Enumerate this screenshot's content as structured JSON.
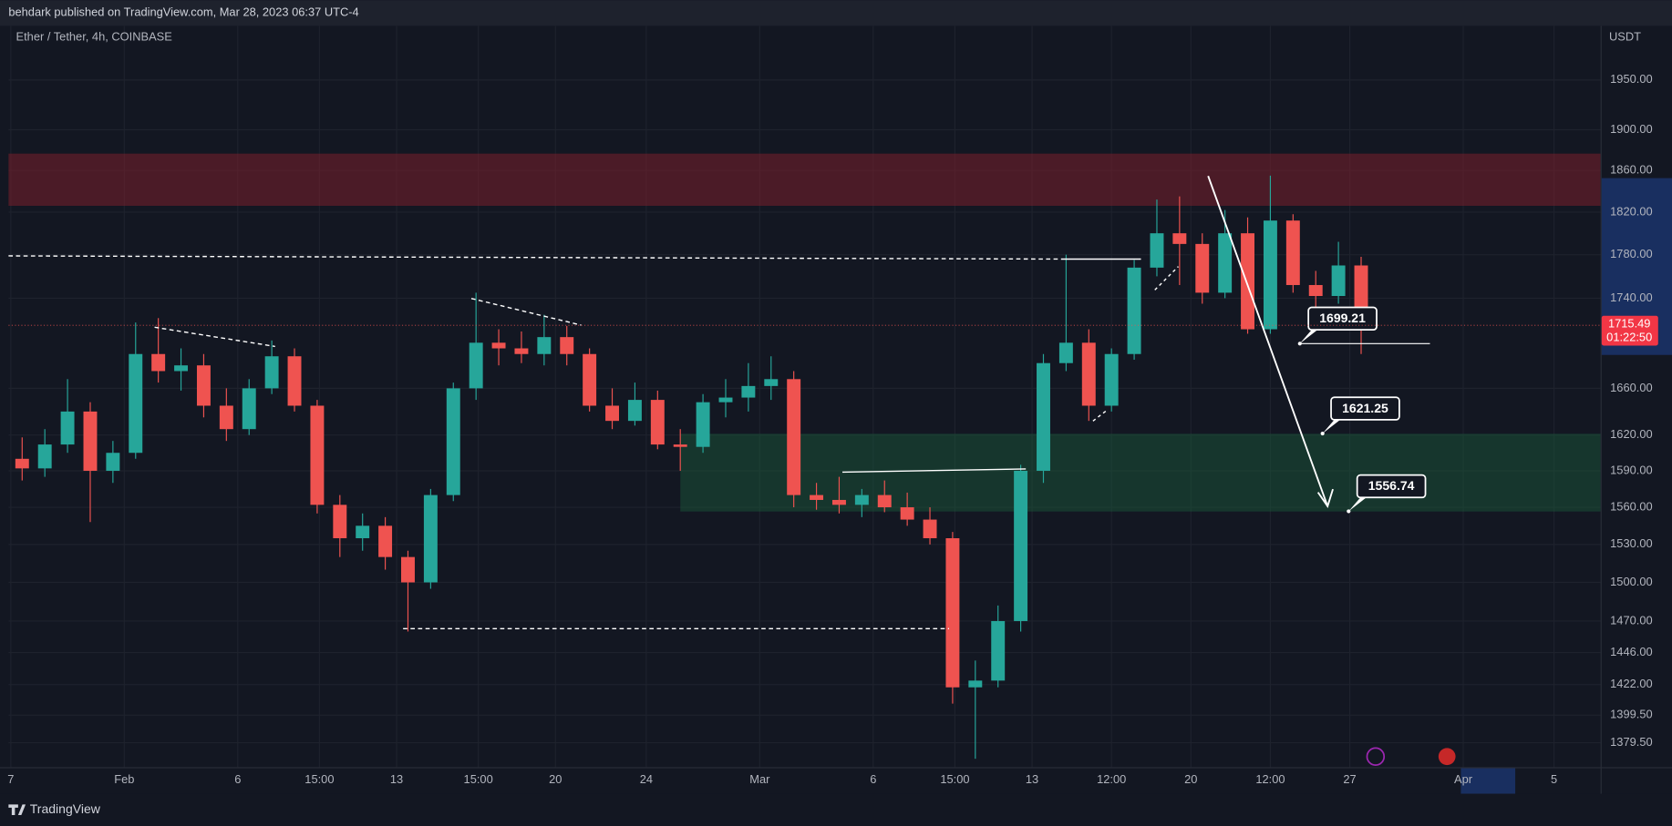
{
  "header": {
    "title": "behdark published on TradingView.com, Mar 28, 2023 06:37 UTC-4"
  },
  "footer": {
    "brand": "TradingView"
  },
  "chart_data": {
    "type": "candlestick",
    "title": "Ether / Tether, 4h, COINBASE",
    "y_unit": "USDT",
    "log_scale": true,
    "grid": true,
    "up_color": "#26a69a",
    "down_color": "#ef5350",
    "x": [
      0.5,
      1.5,
      2.5,
      3.5,
      4.5,
      5.5,
      6.5,
      7.5,
      8.5,
      9.5,
      10.5,
      11.5,
      12.5,
      13.5,
      14.5,
      15.5,
      16.5,
      17.5,
      18.5,
      19.5,
      20.5,
      21.5,
      22.5,
      23.5,
      24.5,
      25.5,
      26.5,
      27.5,
      28.5,
      29.5,
      30.5,
      31.5,
      32.5,
      33.5,
      34.5,
      35.5,
      36.5,
      37.5,
      38.5,
      39.5,
      40.5,
      41.5,
      42.5,
      43.5,
      44.5,
      45.5,
      46.5,
      47.5,
      48.5,
      49.5,
      50.5,
      51.5,
      52.5,
      53.5,
      54.5,
      55.5,
      56.5,
      57.5,
      58.5,
      59.5
    ],
    "open": [
      1600,
      1592,
      1612,
      1640,
      1590,
      1605,
      1690,
      1675,
      1680,
      1645,
      1625,
      1660,
      1688,
      1645,
      1562,
      1535,
      1545,
      1520,
      1500,
      1570,
      1660,
      1700,
      1695,
      1690,
      1705,
      1690,
      1645,
      1632,
      1650,
      1612,
      1610,
      1648,
      1652,
      1662,
      1668,
      1570,
      1566,
      1562,
      1570,
      1560,
      1550,
      1535,
      1420,
      1425,
      1470,
      1590,
      1682,
      1700,
      1645,
      1690,
      1768,
      1800,
      1790,
      1745,
      1800,
      1712,
      1812,
      1752,
      1742,
      1770
    ],
    "high": [
      1618,
      1625,
      1668,
      1648,
      1615,
      1718,
      1722,
      1695,
      1690,
      1660,
      1668,
      1702,
      1695,
      1650,
      1570,
      1555,
      1552,
      1525,
      1575,
      1665,
      1745,
      1712,
      1710,
      1725,
      1715,
      1695,
      1660,
      1665,
      1658,
      1625,
      1655,
      1668,
      1682,
      1688,
      1675,
      1580,
      1585,
      1575,
      1582,
      1572,
      1560,
      1540,
      1440,
      1482,
      1595,
      1690,
      1780,
      1712,
      1695,
      1775,
      1832,
      1835,
      1800,
      1822,
      1815,
      1855,
      1818,
      1765,
      1792,
      1778
    ],
    "low": [
      1582,
      1585,
      1605,
      1548,
      1580,
      1600,
      1665,
      1658,
      1635,
      1615,
      1620,
      1655,
      1640,
      1555,
      1520,
      1525,
      1510,
      1462,
      1495,
      1565,
      1650,
      1680,
      1682,
      1680,
      1680,
      1640,
      1625,
      1628,
      1608,
      1590,
      1605,
      1635,
      1640,
      1650,
      1560,
      1558,
      1555,
      1552,
      1556,
      1545,
      1530,
      1408,
      1368,
      1420,
      1462,
      1580,
      1675,
      1632,
      1640,
      1685,
      1760,
      1752,
      1735,
      1740,
      1708,
      1708,
      1745,
      1728,
      1735,
      1690
    ],
    "close": [
      1592,
      1612,
      1640,
      1590,
      1605,
      1690,
      1675,
      1680,
      1645,
      1625,
      1660,
      1688,
      1645,
      1562,
      1535,
      1545,
      1520,
      1500,
      1570,
      1660,
      1700,
      1695,
      1690,
      1705,
      1690,
      1645,
      1632,
      1650,
      1612,
      1610,
      1648,
      1652,
      1662,
      1668,
      1570,
      1566,
      1562,
      1570,
      1560,
      1550,
      1535,
      1420,
      1425,
      1470,
      1590,
      1682,
      1700,
      1645,
      1690,
      1768,
      1800,
      1790,
      1745,
      1800,
      1712,
      1812,
      1752,
      1742,
      1770,
      1715.49
    ],
    "xlim": [
      -0.1,
      70.05
    ],
    "ylim": [
      1362,
      2006
    ],
    "xticks": [
      {
        "value": 0,
        "label": "7"
      },
      {
        "value": 5,
        "label": "Feb"
      },
      {
        "value": 10,
        "label": "6"
      },
      {
        "value": 13.6,
        "label": "15:00"
      },
      {
        "value": 17,
        "label": "13"
      },
      {
        "value": 20.6,
        "label": "15:00"
      },
      {
        "value": 24,
        "label": "20"
      },
      {
        "value": 28,
        "label": "24"
      },
      {
        "value": 33,
        "label": "Mar"
      },
      {
        "value": 38,
        "label": "6"
      },
      {
        "value": 41.6,
        "label": "15:00"
      },
      {
        "value": 45,
        "label": "13"
      },
      {
        "value": 48.5,
        "label": "12:00"
      },
      {
        "value": 52,
        "label": "20"
      },
      {
        "value": 55.5,
        "label": "12:00"
      },
      {
        "value": 59,
        "label": "27"
      },
      {
        "value": 64,
        "label": "Apr"
      },
      {
        "value": 68,
        "label": "5"
      }
    ],
    "yticks": [
      {
        "value": 1950,
        "label": "1950.00"
      },
      {
        "value": 1900,
        "label": "1900.00"
      },
      {
        "value": 1860,
        "label": "1860.00"
      },
      {
        "value": 1820,
        "label": "1820.00"
      },
      {
        "value": 1780,
        "label": "1780.00"
      },
      {
        "value": 1740,
        "label": "1740.00"
      },
      {
        "value": 1660,
        "label": "1660.00"
      },
      {
        "value": 1620,
        "label": "1620.00"
      },
      {
        "value": 1590,
        "label": "1590.00"
      },
      {
        "value": 1560,
        "label": "1560.00"
      },
      {
        "value": 1530,
        "label": "1530.00"
      },
      {
        "value": 1500,
        "label": "1500.00"
      },
      {
        "value": 1470,
        "label": "1470.00"
      },
      {
        "value": 1446,
        "label": "1446.00"
      },
      {
        "value": 1422,
        "label": "1422.00"
      },
      {
        "value": 1399.5,
        "label": "1399.50"
      },
      {
        "value": 1379.5,
        "label": "1379.50"
      }
    ],
    "last_price": 1715.49,
    "countdown": "01:22:50",
    "price_labels": [
      {
        "x": 56.8,
        "value": 1699.21
      },
      {
        "x": 57.8,
        "value": 1621.25
      },
      {
        "x": 58.95,
        "value": 1556.74
      }
    ]
  }
}
